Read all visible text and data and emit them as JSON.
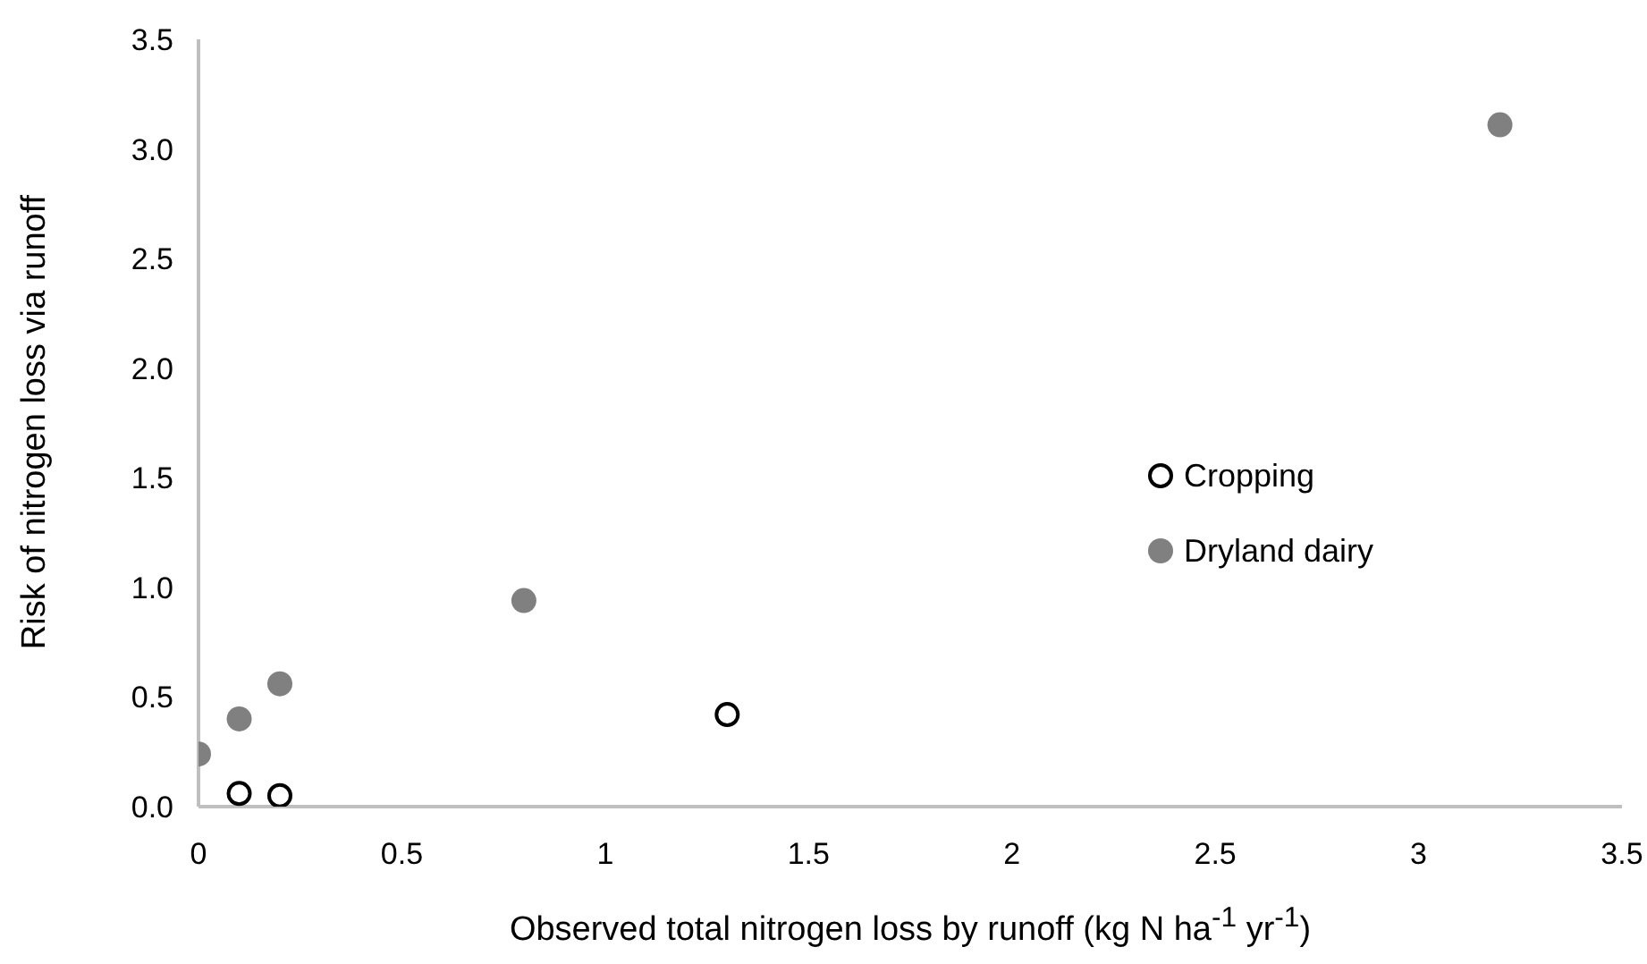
{
  "chart_data": {
    "type": "scatter",
    "xlabel": "Observed total nitrogen loss by runoff (kg N ha$^{-1}$ yr$^{-1}$)",
    "ylabel": "Risk of nitrogen loss via runoff",
    "xlim": [
      0,
      3.5
    ],
    "xticks": [
      0,
      0.5,
      1,
      1.5,
      2,
      2.5,
      3,
      3.5
    ],
    "ylim": [
      0,
      3.5
    ],
    "yticks": [
      {
        "value": 0,
        "label": "0.0"
      },
      {
        "value": 0.5,
        "label": "0.5"
      },
      {
        "value": 1,
        "label": "1.0"
      },
      {
        "value": 1.5,
        "label": "1.5"
      },
      {
        "value": 2,
        "label": "2.0"
      },
      {
        "value": 2.5,
        "label": "2.5"
      },
      {
        "value": 3,
        "label": "3.0"
      },
      {
        "value": 3.5,
        "label": "3.5"
      }
    ],
    "grid": false,
    "legend": "right",
    "series": [
      {
        "name": "Cropping",
        "color": "#000000",
        "marker": "circle-open",
        "x": [
          0.1,
          0.2,
          1.3
        ],
        "values": [
          0.06,
          0.05,
          0.42
        ]
      },
      {
        "name": "Dryland dairy",
        "color": "#808080",
        "marker": "circle",
        "x": [
          0,
          0.1,
          0.2,
          0.8,
          3.2
        ],
        "values": [
          0.24,
          0.4,
          0.56,
          0.94,
          3.11
        ]
      }
    ]
  }
}
